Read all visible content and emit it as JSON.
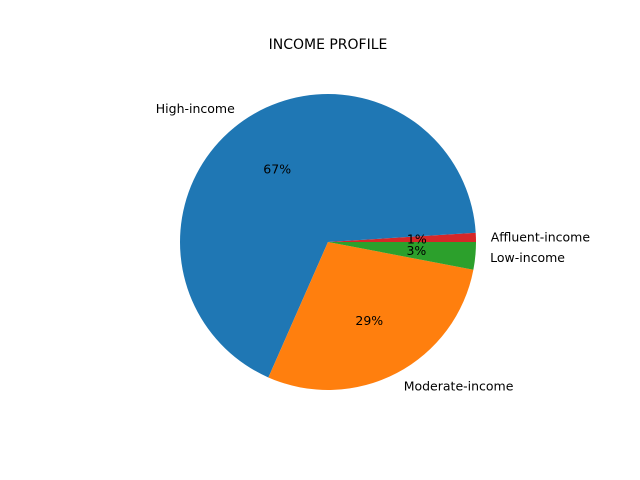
{
  "chart_data": {
    "type": "pie",
    "title": "INCOME PROFILE",
    "categories": [
      "Affluent-income",
      "High-income",
      "Moderate-income",
      "Low-income"
    ],
    "values": [
      1.0,
      67.4,
      28.6,
      3.0
    ],
    "value_labels": [
      "1%",
      "67%",
      "29%",
      "3%"
    ],
    "colors": [
      "#d62728",
      "#1f77b4",
      "#ff7f0e",
      "#2ca02c"
    ],
    "start_angle_deg": 0,
    "direction": "counterclockwise",
    "legend": "none"
  }
}
